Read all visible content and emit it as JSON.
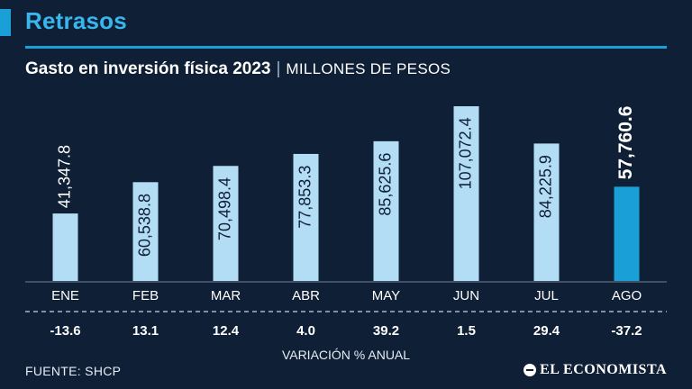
{
  "header": {
    "section_title": "Retrasos",
    "chart_title": "Gasto en inversión física 2023",
    "separator": "|",
    "chart_subtitle": "MILLONES DE PESOS"
  },
  "colors": {
    "background": "#0f1f35",
    "accent": "#1a9fd6",
    "bar": "#b3dcf5",
    "bar_highlight": "#1a9fd6",
    "text": "#ffffff"
  },
  "chart_data": {
    "type": "bar",
    "title": "Gasto en inversión física 2023",
    "ylabel": "MILLONES DE PESOS",
    "xlabel": "",
    "categories": [
      "ENE",
      "FEB",
      "MAR",
      "ABR",
      "MAY",
      "JUN",
      "JUL",
      "AGO"
    ],
    "values": [
      41347.8,
      60538.8,
      70498.4,
      77853.3,
      85625.6,
      107072.4,
      84225.9,
      57760.6
    ],
    "value_labels": [
      "41,347.8",
      "60,538.8",
      "70,498.4",
      "77,853.3",
      "85,625.6",
      "107,072.4",
      "84,225.9",
      "57,760.6"
    ],
    "highlight_index": 7,
    "variation_label": "VARIACIÓN % ANUAL",
    "variation": [
      "-13.6",
      "13.1",
      "12.4",
      "4.0",
      "39.2",
      "1.5",
      "29.4",
      "-37.2"
    ],
    "grid": false
  },
  "footer": {
    "source": "FUENTE: SHCP",
    "brand": "EL ECONOMISTA",
    "brand_icon": "el-economista-logo-icon"
  }
}
